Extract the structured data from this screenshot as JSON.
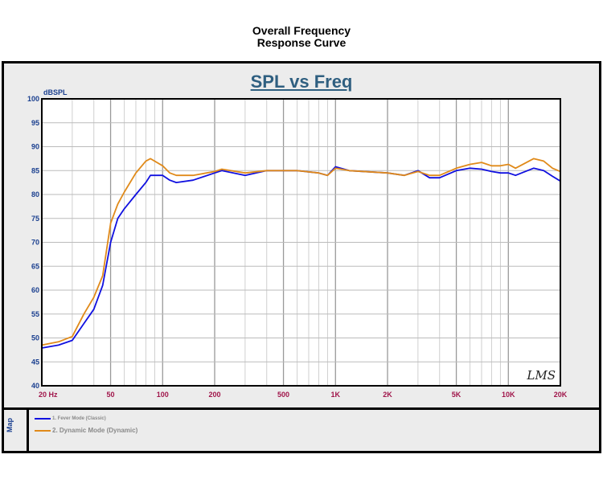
{
  "header": {
    "line1": "Overall Frequency",
    "line2": "Response Curve"
  },
  "chart_data": {
    "type": "line",
    "title": "SPL vs Freq",
    "ylabel": "dBSPL",
    "xlabel": "Hz",
    "xscale": "log",
    "xlim": [
      20,
      20000
    ],
    "ylim": [
      40,
      100
    ],
    "yticks": [
      40,
      45,
      50,
      55,
      60,
      65,
      70,
      75,
      80,
      85,
      90,
      95,
      100
    ],
    "xticks": [
      {
        "v": 20,
        "label": "20"
      },
      {
        "v": 50,
        "label": "50"
      },
      {
        "v": 100,
        "label": "100"
      },
      {
        "v": 200,
        "label": "200"
      },
      {
        "v": 500,
        "label": "500"
      },
      {
        "v": 1000,
        "label": "1K"
      },
      {
        "v": 2000,
        "label": "2K"
      },
      {
        "v": 5000,
        "label": "5K"
      },
      {
        "v": 10000,
        "label": "10K"
      },
      {
        "v": 20000,
        "label": "20K"
      }
    ],
    "grid": true,
    "x": [
      20,
      25,
      30,
      35,
      40,
      45,
      50,
      55,
      60,
      70,
      80,
      85,
      100,
      110,
      120,
      150,
      200,
      220,
      300,
      400,
      600,
      800,
      900,
      1000,
      1200,
      2000,
      2500,
      3000,
      3500,
      4000,
      5000,
      6000,
      7000,
      8000,
      9000,
      10000,
      11000,
      14000,
      16000,
      18000,
      20000
    ],
    "series": [
      {
        "name": "1. Fever Mode (Classic)",
        "color": "#1010e0",
        "values": [
          47.9,
          48.5,
          49.5,
          53,
          56,
          61,
          70,
          75,
          77,
          80,
          82.5,
          84,
          84,
          83,
          82.5,
          83,
          84.5,
          85,
          84,
          85,
          85,
          84.5,
          84,
          85.8,
          85,
          84.5,
          84,
          85,
          83.5,
          83.5,
          85,
          85.5,
          85.3,
          84.8,
          84.5,
          84.5,
          84,
          85.5,
          85,
          83.8,
          82.8
        ]
      },
      {
        "name": "2. Dynamic Mode (Dynamic)",
        "color": "#e08a1a",
        "values": [
          48.5,
          49.2,
          50.3,
          55,
          58.5,
          63,
          74,
          78,
          80.5,
          84.5,
          87,
          87.5,
          86,
          84.5,
          84,
          84,
          84.8,
          85.3,
          84.5,
          85,
          85,
          84.5,
          84,
          85.5,
          85,
          84.5,
          84,
          84.8,
          84,
          84,
          85.5,
          86.3,
          86.7,
          86,
          86,
          86.3,
          85.5,
          87.5,
          87,
          85.5,
          84.8
        ]
      }
    ],
    "legend": "bottom-left",
    "watermark": "LMS"
  },
  "legend": {
    "map_label": "Map"
  }
}
